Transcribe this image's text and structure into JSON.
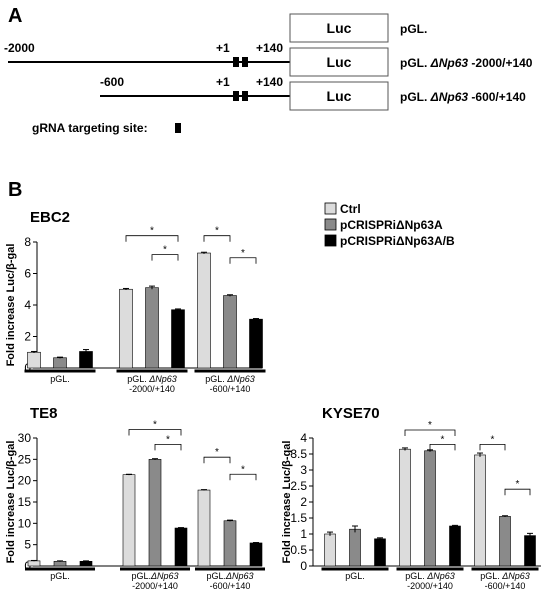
{
  "panel_a": {
    "label": "A",
    "gRNA_label": "gRNA targeting site:",
    "constructs": [
      {
        "name_prefix": "pGL.",
        "name_gene": "",
        "name_suffix": "",
        "box": "Luc",
        "start": "",
        "plus1": "",
        "end": ""
      },
      {
        "name_prefix": "pGL. ",
        "name_gene": "ΔNp63",
        "name_suffix": " -2000/+140",
        "box": "Luc",
        "start": "-2000",
        "plus1": "+1",
        "end": "+140"
      },
      {
        "name_prefix": "pGL. ",
        "name_gene": "ΔNp63",
        "name_suffix": " -600/+140",
        "box": "Luc",
        "start": "-600",
        "plus1": "+1",
        "end": "+140"
      }
    ]
  },
  "panel_b": {
    "label": "B",
    "legend": [
      {
        "label": "Ctrl",
        "color": "#dcdcdc"
      },
      {
        "label": "pCRISPRiΔNp63A",
        "color": "#8a8a8a"
      },
      {
        "label": "pCRISPRiΔNp63A/B",
        "color": "#000000"
      }
    ]
  },
  "chart_data": [
    {
      "type": "bar",
      "title": "EBC2",
      "ylabel": "Fold increase Luc/β-gal",
      "ylim": [
        0,
        8
      ],
      "yticks": [
        0,
        2,
        4,
        6,
        8
      ],
      "groups": [
        {
          "line1": "pGL.",
          "gene": "",
          "line2": ""
        },
        {
          "line1": "pGL. ",
          "gene": "ΔNp63",
          "line2": "-2000/+140"
        },
        {
          "line1": "pGL. ",
          "gene": "ΔNp63",
          "line2": "-600/+140"
        }
      ],
      "series": [
        {
          "name": "Ctrl",
          "values": [
            1.0,
            5.0,
            7.3
          ],
          "errors": [
            0.05,
            0.05,
            0.05
          ]
        },
        {
          "name": "pCRISPRiΔNp63A",
          "values": [
            0.65,
            5.1,
            4.6
          ],
          "errors": [
            0.04,
            0.1,
            0.05
          ]
        },
        {
          "name": "pCRISPRiΔNp63A/B",
          "values": [
            1.05,
            3.7,
            3.1
          ],
          "errors": [
            0.12,
            0.05,
            0.04
          ]
        }
      ],
      "significance": [
        {
          "group": 1,
          "from": 0,
          "to": 2,
          "y": 8.4,
          "label": "*"
        },
        {
          "group": 1,
          "from": 1,
          "to": 2,
          "y": 7.2,
          "label": "*"
        },
        {
          "group": 2,
          "from": 0,
          "to": 1,
          "y": 8.4,
          "label": "*"
        },
        {
          "group": 2,
          "from": 1,
          "to": 2,
          "y": 7.0,
          "label": "*"
        }
      ]
    },
    {
      "type": "bar",
      "title": "TE8",
      "ylabel": "Fold increase Luc/β-gal",
      "ylim": [
        0,
        30
      ],
      "yticks": [
        0,
        5,
        10,
        15,
        20,
        25,
        30
      ],
      "groups": [
        {
          "line1": "pGL.",
          "gene": "",
          "line2": ""
        },
        {
          "line1": "pGL.",
          "gene": "ΔNp63",
          "line2": "-2000/+140"
        },
        {
          "line1": "pGL.",
          "gene": "ΔNp63",
          "line2": "-600/+140"
        }
      ],
      "series": [
        {
          "name": "Ctrl",
          "values": [
            1.2,
            21.4,
            17.8
          ],
          "errors": [
            0.1,
            0.1,
            0.1
          ]
        },
        {
          "name": "pCRISPRiΔNp63A",
          "values": [
            1.1,
            25.0,
            10.6
          ],
          "errors": [
            0.1,
            0.15,
            0.15
          ]
        },
        {
          "name": "pCRISPRiΔNp63A/B",
          "values": [
            1.1,
            8.9,
            5.4
          ],
          "errors": [
            0.1,
            0.1,
            0.1
          ]
        }
      ],
      "significance": [
        {
          "group": 1,
          "from": 0,
          "to": 2,
          "y": 32,
          "label": "*"
        },
        {
          "group": 1,
          "from": 1,
          "to": 2,
          "y": 28.5,
          "label": "*"
        },
        {
          "group": 2,
          "from": 0,
          "to": 1,
          "y": 25.5,
          "label": "*"
        },
        {
          "group": 2,
          "from": 1,
          "to": 2,
          "y": 21.5,
          "label": "*"
        }
      ]
    },
    {
      "type": "bar",
      "title": "KYSE70",
      "ylabel": "Fold increase Luc/β-gal",
      "ylim": [
        0,
        4
      ],
      "yticks": [
        0,
        0.5,
        1,
        1.5,
        2,
        2.5,
        3,
        3.5,
        4
      ],
      "ytick_labels": [
        "0",
        "0.5",
        "1",
        "1.5",
        "2",
        "2.5",
        "3",
        "3.5",
        "4"
      ],
      "groups": [
        {
          "line1": "pGL.",
          "gene": "",
          "line2": ""
        },
        {
          "line1": "pGL. ",
          "gene": "ΔNp63",
          "line2": "-2000/+140"
        },
        {
          "line1": "pGL. ",
          "gene": "ΔNp63",
          "line2": "-600/+140"
        }
      ],
      "series": [
        {
          "name": "Ctrl",
          "values": [
            1.0,
            3.65,
            3.47
          ],
          "errors": [
            0.06,
            0.04,
            0.06
          ]
        },
        {
          "name": "pCRISPRiΔNp63A",
          "values": [
            1.15,
            3.6,
            1.55
          ],
          "errors": [
            0.1,
            0.03,
            0.02
          ]
        },
        {
          "name": "pCRISPRiΔNp63A/B",
          "values": [
            0.85,
            1.25,
            0.95
          ],
          "errors": [
            0.03,
            0.02,
            0.07
          ]
        }
      ],
      "significance": [
        {
          "group": 1,
          "from": 0,
          "to": 2,
          "y": 4.25,
          "label": "*"
        },
        {
          "group": 1,
          "from": 1,
          "to": 2,
          "y": 3.8,
          "label": "*"
        },
        {
          "group": 2,
          "from": 0,
          "to": 1,
          "y": 3.8,
          "label": "*"
        },
        {
          "group": 2,
          "from": 1,
          "to": 2,
          "y": 2.4,
          "label": "*"
        }
      ]
    }
  ]
}
